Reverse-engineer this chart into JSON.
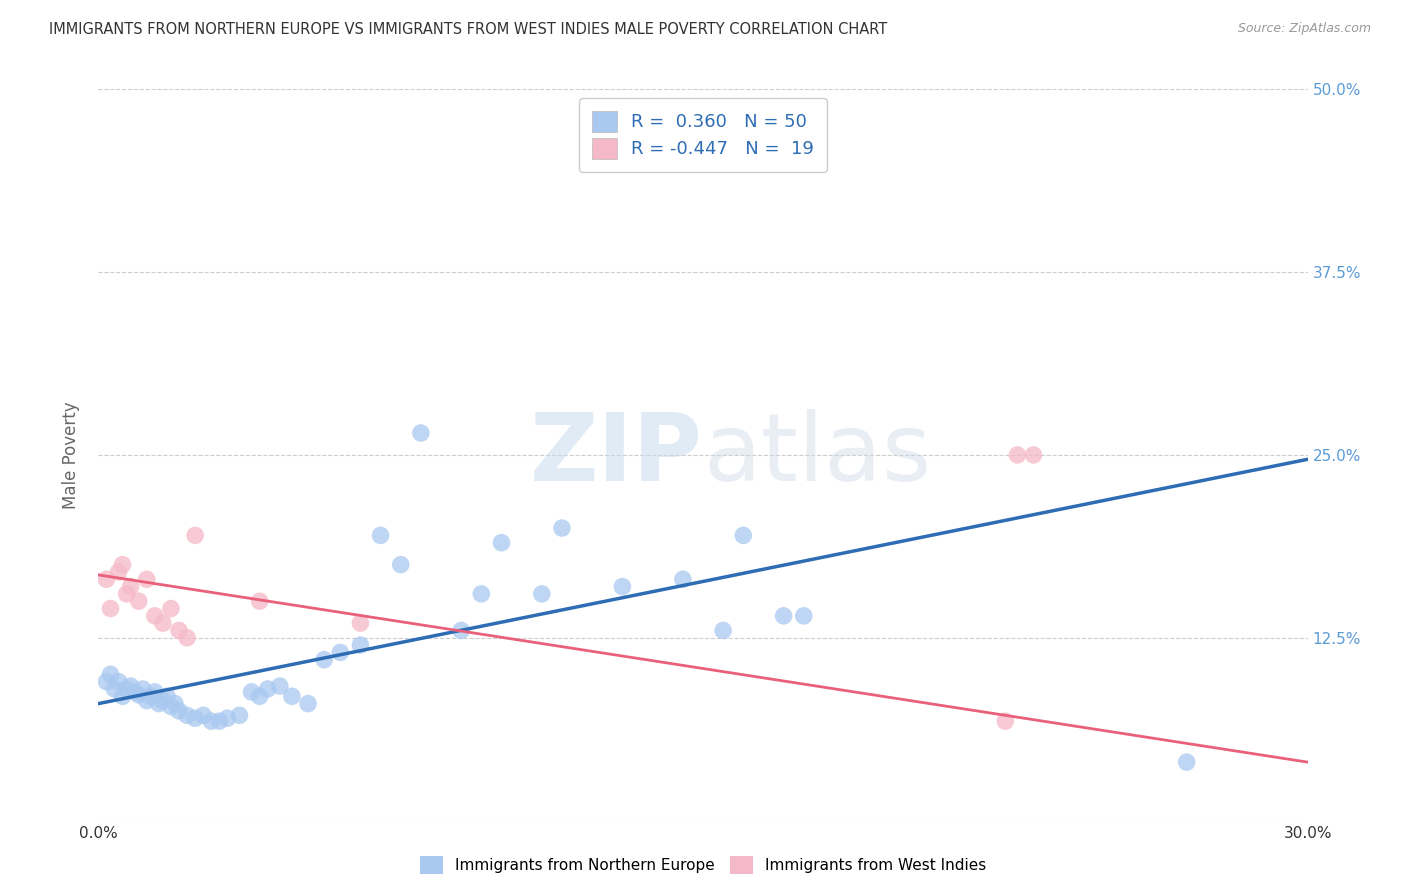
{
  "title": "IMMIGRANTS FROM NORTHERN EUROPE VS IMMIGRANTS FROM WEST INDIES MALE POVERTY CORRELATION CHART",
  "source": "Source: ZipAtlas.com",
  "ylabel": "Male Poverty",
  "xlim": [
    0.0,
    0.3
  ],
  "ylim": [
    0.0,
    0.5
  ],
  "xticks": [
    0.0,
    0.05,
    0.1,
    0.15,
    0.2,
    0.25,
    0.3
  ],
  "xtick_labels": [
    "0.0%",
    "",
    "",
    "",
    "",
    "",
    "30.0%"
  ],
  "ytick_labels": [
    "",
    "12.5%",
    "25.0%",
    "37.5%",
    "50.0%"
  ],
  "yticks": [
    0.0,
    0.125,
    0.25,
    0.375,
    0.5
  ],
  "blue_R": "0.360",
  "blue_N": "50",
  "pink_R": "-0.447",
  "pink_N": "19",
  "legend1_label": "Immigrants from Northern Europe",
  "legend2_label": "Immigrants from West Indies",
  "watermark": "ZIPatlas",
  "blue_scatter_x": [
    0.002,
    0.003,
    0.004,
    0.005,
    0.006,
    0.007,
    0.008,
    0.009,
    0.01,
    0.011,
    0.012,
    0.013,
    0.014,
    0.015,
    0.016,
    0.017,
    0.018,
    0.019,
    0.02,
    0.022,
    0.024,
    0.026,
    0.028,
    0.03,
    0.032,
    0.035,
    0.038,
    0.04,
    0.042,
    0.045,
    0.048,
    0.052,
    0.056,
    0.06,
    0.065,
    0.07,
    0.075,
    0.08,
    0.09,
    0.095,
    0.1,
    0.11,
    0.115,
    0.13,
    0.145,
    0.155,
    0.16,
    0.17,
    0.175,
    0.27
  ],
  "blue_scatter_y": [
    0.095,
    0.1,
    0.09,
    0.095,
    0.085,
    0.09,
    0.092,
    0.088,
    0.086,
    0.09,
    0.082,
    0.085,
    0.088,
    0.08,
    0.082,
    0.085,
    0.078,
    0.08,
    0.075,
    0.072,
    0.07,
    0.072,
    0.068,
    0.068,
    0.07,
    0.072,
    0.088,
    0.085,
    0.09,
    0.092,
    0.085,
    0.08,
    0.11,
    0.115,
    0.12,
    0.195,
    0.175,
    0.265,
    0.13,
    0.155,
    0.19,
    0.155,
    0.2,
    0.16,
    0.165,
    0.13,
    0.195,
    0.14,
    0.14,
    0.04
  ],
  "pink_scatter_x": [
    0.002,
    0.003,
    0.005,
    0.006,
    0.007,
    0.008,
    0.01,
    0.012,
    0.014,
    0.016,
    0.018,
    0.02,
    0.022,
    0.024,
    0.04,
    0.065,
    0.225,
    0.228,
    0.232
  ],
  "pink_scatter_y": [
    0.165,
    0.145,
    0.17,
    0.175,
    0.155,
    0.16,
    0.15,
    0.165,
    0.14,
    0.135,
    0.145,
    0.13,
    0.125,
    0.195,
    0.15,
    0.135,
    0.068,
    0.25,
    0.25
  ],
  "blue_line_x": [
    0.0,
    0.3
  ],
  "blue_line_y": [
    0.08,
    0.247
  ],
  "pink_line_x": [
    0.0,
    0.3
  ],
  "pink_line_y": [
    0.168,
    0.04
  ],
  "blue_color": "#A8C8F0",
  "pink_color": "#F5B8C8",
  "blue_line_color": "#2E6DB4",
  "pink_line_color": "#E8607A",
  "background_color": "#FFFFFF",
  "grid_color": "#CCCCCC",
  "title_color": "#333333",
  "axis_label_color": "#666666",
  "tick_color_right": "#5B9BD5",
  "source_color": "#999999"
}
